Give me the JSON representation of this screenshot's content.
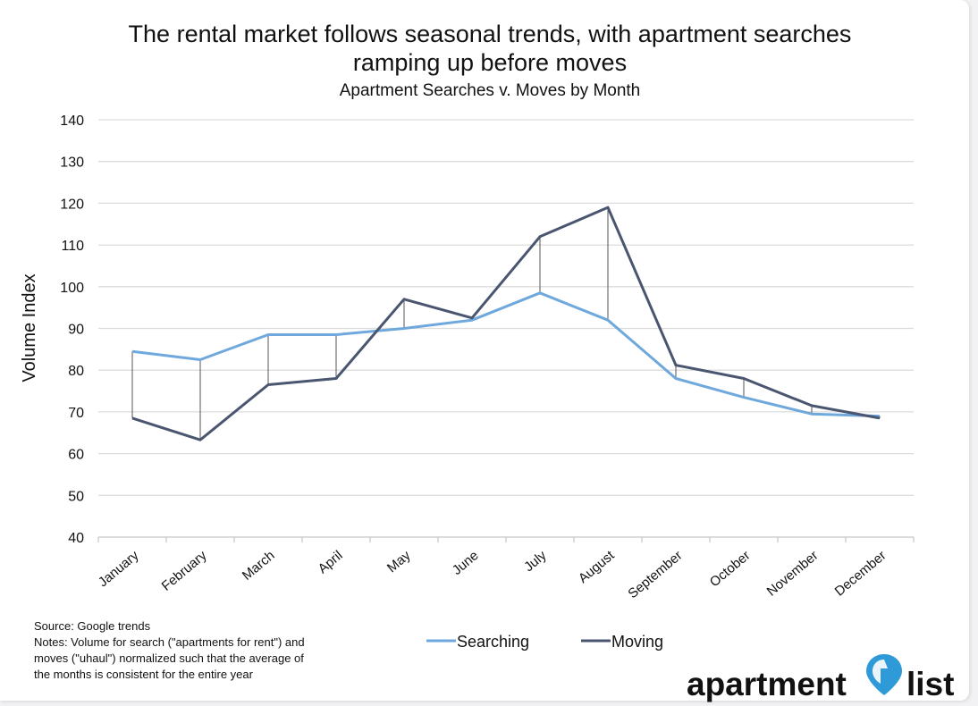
{
  "chart_data": {
    "type": "line",
    "title": "The rental market follows seasonal trends, with apartment searches ramping up before moves",
    "title_lines": [
      "The rental market follows seasonal trends, with apartment searches",
      "ramping up before moves"
    ],
    "subtitle": "Apartment Searches v. Moves by Month",
    "xlabel": "",
    "ylabel": "Volume Index",
    "ylim": [
      40,
      140
    ],
    "yticks": [
      40,
      50,
      60,
      70,
      80,
      90,
      100,
      110,
      120,
      130,
      140
    ],
    "grid": true,
    "legend_position": "bottom-center",
    "categories": [
      "January",
      "February",
      "March",
      "April",
      "May",
      "June",
      "July",
      "August",
      "September",
      "October",
      "November",
      "December"
    ],
    "series": [
      {
        "name": "Searching",
        "color": "#6fa8dc",
        "values": [
          84.5,
          82.5,
          88.5,
          88.5,
          90,
          92,
          98.5,
          92,
          78,
          73.5,
          69.5,
          69
        ]
      },
      {
        "name": "Moving",
        "color": "#4a5670",
        "values": [
          68.5,
          63.3,
          76.5,
          78,
          97,
          92.5,
          112,
          119,
          81.2,
          78,
          71.5,
          68.5
        ]
      }
    ],
    "drop_line_color": "#555555",
    "notes": [
      "Source: Google trends",
      "Notes: Volume for search (\"apartments for rent\") and",
      "moves (\"uhaul\") normalized such that the average of",
      "the months is consistent for the entire year"
    ]
  },
  "logo": {
    "word1": "apartment",
    "word2": "list",
    "pin_color": "#2e9ad7"
  }
}
